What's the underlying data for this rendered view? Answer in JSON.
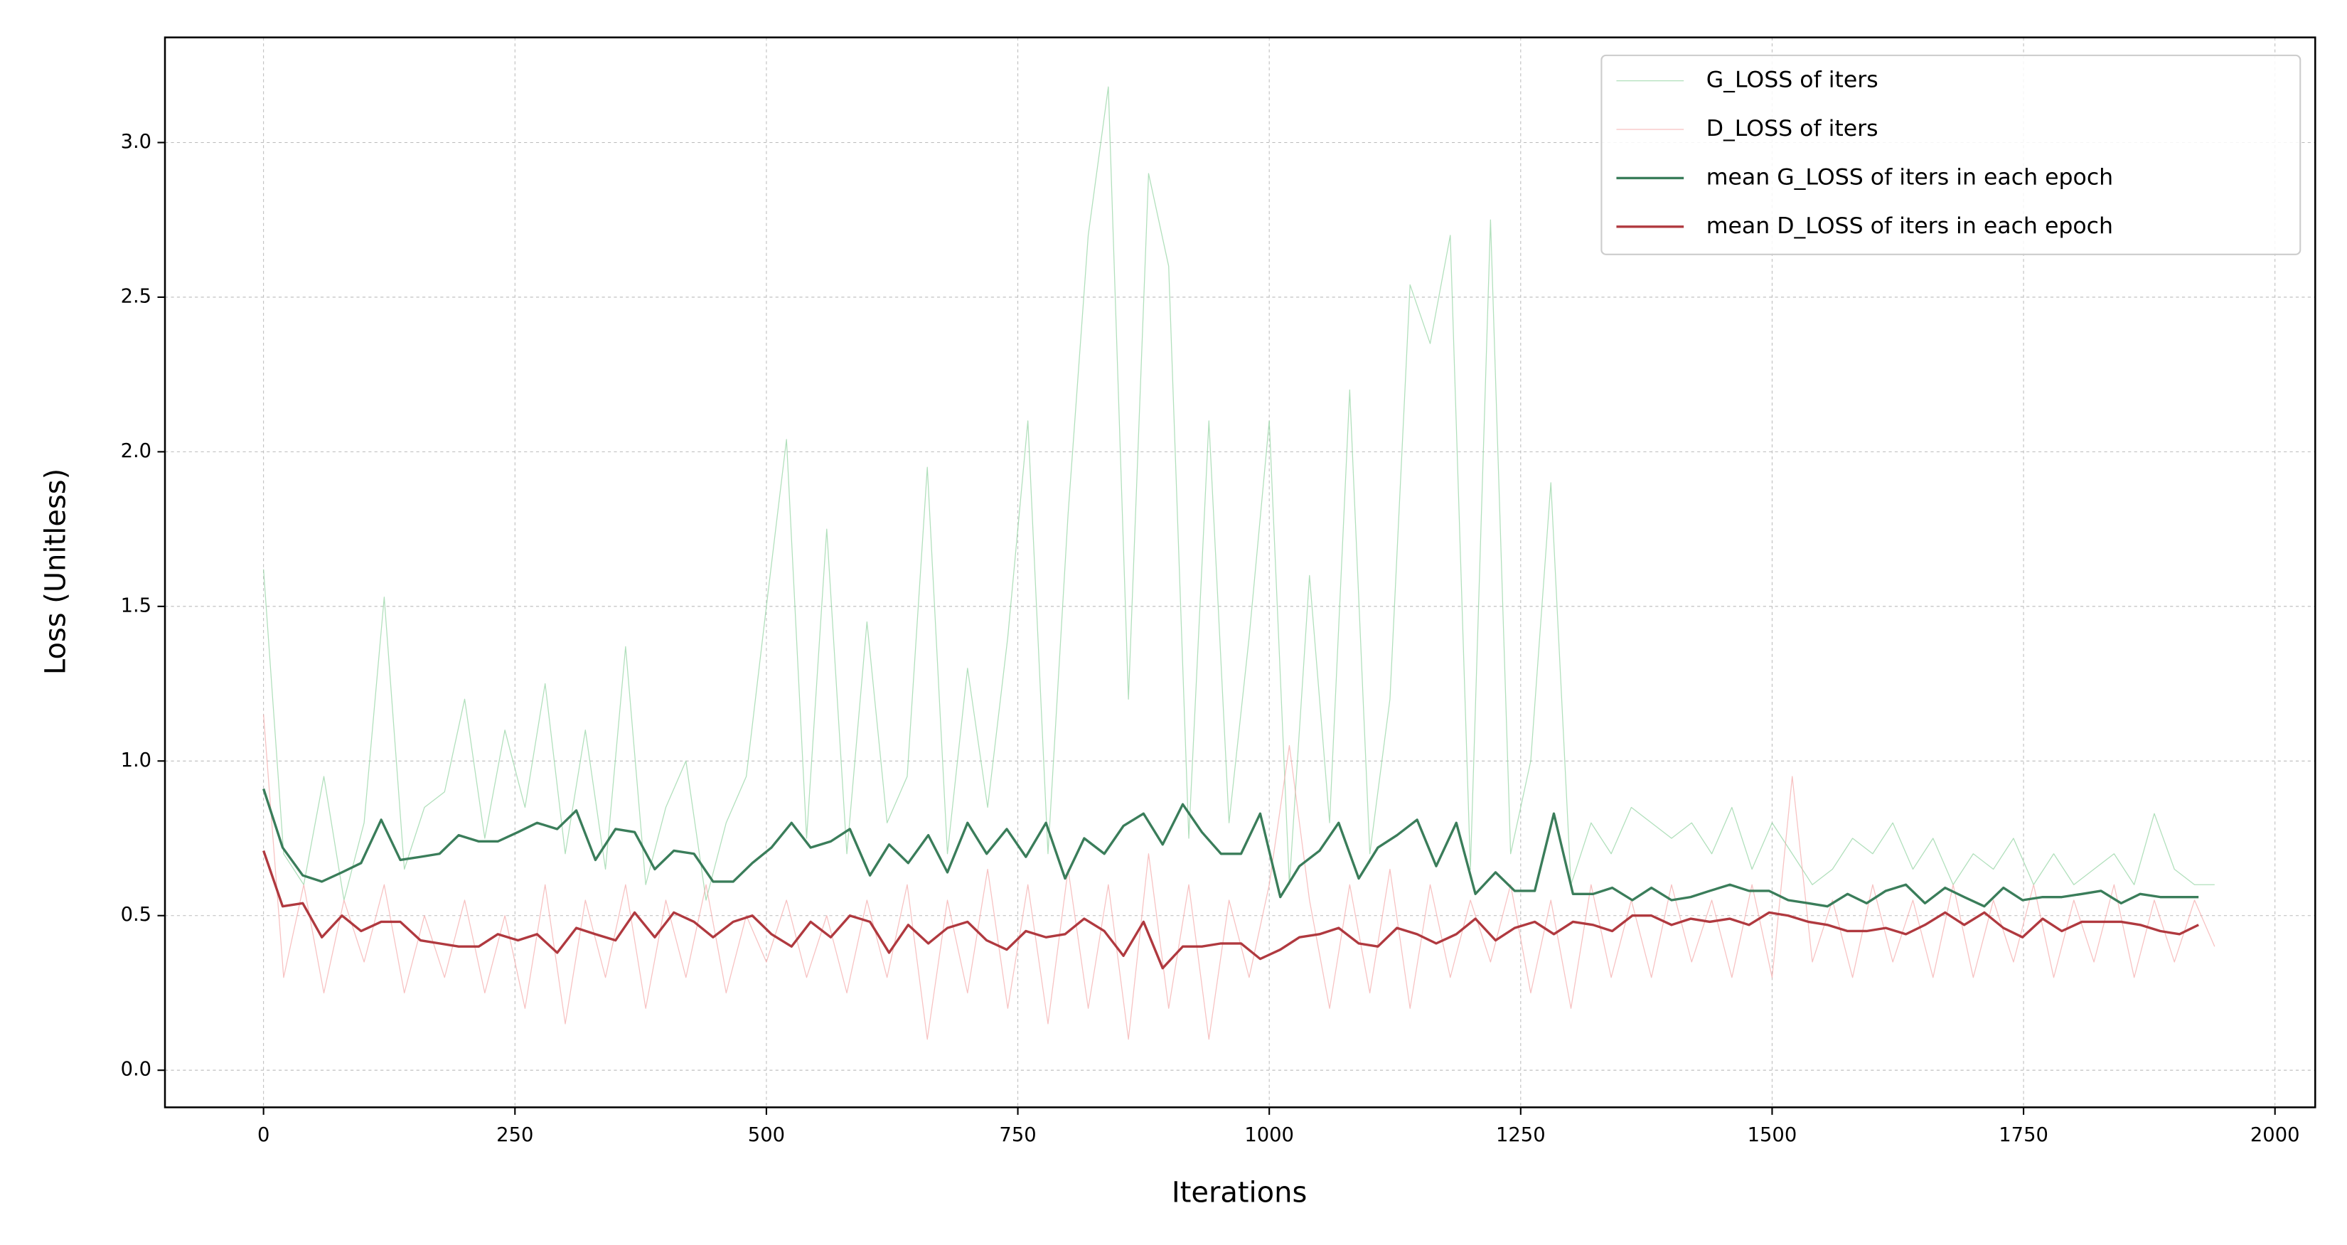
{
  "chart_data": {
    "type": "line",
    "xlabel": "Iterations",
    "ylabel": "Loss (Unitless)",
    "xlim": [
      -98,
      2040
    ],
    "ylim": [
      -0.12,
      3.34
    ],
    "xticks": [
      0,
      250,
      500,
      750,
      1000,
      1250,
      1500,
      1750,
      2000
    ],
    "yticks": [
      {
        "value": 0,
        "label": "0.0"
      },
      {
        "value": 0.5,
        "label": "0.5"
      },
      {
        "value": 1,
        "label": "1.0"
      },
      {
        "value": 1.5,
        "label": "1.5"
      },
      {
        "value": 2,
        "label": "2.0"
      },
      {
        "value": 2.5,
        "label": "2.5"
      },
      {
        "value": 3,
        "label": "3.0"
      }
    ],
    "grid": true,
    "legend": "upper right",
    "series": [
      {
        "name": "G_LOSS of iters",
        "color": "#8fd19e",
        "width": 0.6,
        "opacity": 0.7,
        "x": [
          0,
          20,
          40,
          60,
          80,
          100,
          120,
          140,
          160,
          180,
          200,
          220,
          240,
          260,
          280,
          300,
          320,
          340,
          360,
          380,
          400,
          420,
          440,
          460,
          480,
          500,
          520,
          540,
          560,
          580,
          600,
          620,
          640,
          660,
          680,
          700,
          720,
          740,
          760,
          780,
          800,
          820,
          840,
          860,
          880,
          900,
          920,
          940,
          960,
          980,
          1000,
          1020,
          1040,
          1060,
          1080,
          1100,
          1120,
          1140,
          1160,
          1180,
          1200,
          1220,
          1240,
          1260,
          1280,
          1300,
          1320,
          1340,
          1360,
          1380,
          1400,
          1420,
          1440,
          1460,
          1480,
          1500,
          1520,
          1540,
          1560,
          1580,
          1600,
          1620,
          1640,
          1660,
          1680,
          1700,
          1720,
          1740,
          1760,
          1780,
          1800,
          1820,
          1840,
          1860,
          1880,
          1900,
          1920,
          1940
        ],
        "values": [
          1.62,
          0.7,
          0.6,
          0.95,
          0.55,
          0.8,
          1.53,
          0.65,
          0.85,
          0.9,
          1.2,
          0.75,
          1.1,
          0.85,
          1.25,
          0.7,
          1.1,
          0.65,
          1.37,
          0.6,
          0.85,
          1.0,
          0.55,
          0.8,
          0.95,
          1.5,
          2.04,
          0.75,
          1.75,
          0.7,
          1.45,
          0.8,
          0.95,
          1.95,
          0.7,
          1.3,
          0.85,
          1.4,
          2.1,
          0.7,
          1.8,
          2.7,
          3.18,
          1.2,
          2.9,
          2.6,
          0.75,
          2.1,
          0.8,
          1.4,
          2.1,
          0.6,
          1.6,
          0.8,
          2.2,
          0.7,
          1.2,
          2.54,
          2.35,
          2.7,
          0.65,
          2.75,
          0.7,
          1.0,
          1.9,
          0.6,
          0.8,
          0.7,
          0.85,
          0.8,
          0.75,
          0.8,
          0.7,
          0.85,
          0.65,
          0.8,
          0.7,
          0.6,
          0.65,
          0.75,
          0.7,
          0.8,
          0.65,
          0.75,
          0.6,
          0.7,
          0.65,
          0.75,
          0.6,
          0.7,
          0.6,
          0.65,
          0.7,
          0.6,
          0.83,
          0.65,
          0.6,
          0.6
        ]
      },
      {
        "name": "D_LOSS of iters",
        "color": "#f4a6a6",
        "width": 0.6,
        "opacity": 0.7,
        "x": [
          0,
          20,
          40,
          60,
          80,
          100,
          120,
          140,
          160,
          180,
          200,
          220,
          240,
          260,
          280,
          300,
          320,
          340,
          360,
          380,
          400,
          420,
          440,
          460,
          480,
          500,
          520,
          540,
          560,
          580,
          600,
          620,
          640,
          660,
          680,
          700,
          720,
          740,
          760,
          780,
          800,
          820,
          840,
          860,
          880,
          900,
          920,
          940,
          960,
          980,
          1000,
          1020,
          1040,
          1060,
          1080,
          1100,
          1120,
          1140,
          1160,
          1180,
          1200,
          1220,
          1240,
          1260,
          1280,
          1300,
          1320,
          1340,
          1360,
          1380,
          1400,
          1420,
          1440,
          1460,
          1480,
          1500,
          1520,
          1540,
          1560,
          1580,
          1600,
          1620,
          1640,
          1660,
          1680,
          1700,
          1720,
          1740,
          1760,
          1780,
          1800,
          1820,
          1840,
          1860,
          1880,
          1900,
          1920,
          1940
        ],
        "values": [
          1.15,
          0.3,
          0.6,
          0.25,
          0.55,
          0.35,
          0.6,
          0.25,
          0.5,
          0.3,
          0.55,
          0.25,
          0.5,
          0.2,
          0.6,
          0.15,
          0.55,
          0.3,
          0.6,
          0.2,
          0.55,
          0.3,
          0.6,
          0.25,
          0.5,
          0.35,
          0.55,
          0.3,
          0.5,
          0.25,
          0.55,
          0.3,
          0.6,
          0.1,
          0.55,
          0.25,
          0.65,
          0.2,
          0.6,
          0.15,
          0.65,
          0.2,
          0.6,
          0.1,
          0.7,
          0.2,
          0.6,
          0.1,
          0.55,
          0.3,
          0.6,
          1.05,
          0.55,
          0.2,
          0.6,
          0.25,
          0.65,
          0.2,
          0.6,
          0.3,
          0.55,
          0.35,
          0.6,
          0.25,
          0.55,
          0.2,
          0.6,
          0.3,
          0.55,
          0.3,
          0.6,
          0.35,
          0.55,
          0.3,
          0.6,
          0.3,
          0.95,
          0.35,
          0.55,
          0.3,
          0.6,
          0.35,
          0.55,
          0.3,
          0.6,
          0.3,
          0.55,
          0.35,
          0.6,
          0.3,
          0.55,
          0.35,
          0.6,
          0.3,
          0.55,
          0.35,
          0.55,
          0.4
        ]
      },
      {
        "name": "mean G_LOSS of iters in each epoch",
        "color": "#3a7d5a",
        "width": 1.6,
        "opacity": 1,
        "x": [
          0,
          19,
          39,
          58,
          78,
          97,
          117,
          136,
          156,
          175,
          194,
          214,
          233,
          253,
          272,
          292,
          311,
          330,
          350,
          369,
          389,
          408,
          428,
          447,
          467,
          486,
          505,
          525,
          544,
          564,
          583,
          603,
          622,
          641,
          661,
          680,
          700,
          719,
          739,
          758,
          778,
          797,
          816,
          836,
          855,
          875,
          894,
          914,
          933,
          952,
          972,
          991,
          1011,
          1030,
          1050,
          1069,
          1089,
          1108,
          1127,
          1147,
          1166,
          1186,
          1205,
          1225,
          1244,
          1264,
          1283,
          1302,
          1322,
          1341,
          1361,
          1380,
          1400,
          1419,
          1438,
          1458,
          1477,
          1497,
          1516,
          1536,
          1555,
          1575,
          1594,
          1613,
          1633,
          1652,
          1672,
          1691,
          1711,
          1730,
          1749,
          1769,
          1788,
          1808,
          1827,
          1847,
          1866,
          1886,
          1905,
          1924
        ],
        "values": [
          0.91,
          0.72,
          0.63,
          0.61,
          0.64,
          0.67,
          0.81,
          0.68,
          0.69,
          0.7,
          0.76,
          0.74,
          0.74,
          0.77,
          0.8,
          0.78,
          0.84,
          0.68,
          0.78,
          0.77,
          0.65,
          0.71,
          0.7,
          0.61,
          0.61,
          0.67,
          0.72,
          0.8,
          0.72,
          0.74,
          0.78,
          0.63,
          0.73,
          0.67,
          0.76,
          0.64,
          0.8,
          0.7,
          0.78,
          0.69,
          0.8,
          0.62,
          0.75,
          0.7,
          0.79,
          0.83,
          0.73,
          0.86,
          0.77,
          0.7,
          0.7,
          0.83,
          0.56,
          0.66,
          0.71,
          0.8,
          0.62,
          0.72,
          0.76,
          0.81,
          0.66,
          0.8,
          0.57,
          0.64,
          0.58,
          0.58,
          0.83,
          0.57,
          0.57,
          0.59,
          0.55,
          0.59,
          0.55,
          0.56,
          0.58,
          0.6,
          0.58,
          0.58,
          0.55,
          0.54,
          0.53,
          0.57,
          0.54,
          0.58,
          0.6,
          0.54,
          0.59,
          0.56,
          0.53,
          0.59,
          0.55,
          0.56,
          0.56,
          0.57,
          0.58,
          0.54,
          0.57,
          0.56,
          0.56,
          0.56
        ]
      },
      {
        "name": "mean D_LOSS of iters in each epoch",
        "color": "#b0393f",
        "width": 1.6,
        "opacity": 1,
        "x": [
          0,
          19,
          39,
          58,
          78,
          97,
          117,
          136,
          156,
          175,
          194,
          214,
          233,
          253,
          272,
          292,
          311,
          330,
          350,
          369,
          389,
          408,
          428,
          447,
          467,
          486,
          505,
          525,
          544,
          564,
          583,
          603,
          622,
          641,
          661,
          680,
          700,
          719,
          739,
          758,
          778,
          797,
          816,
          836,
          855,
          875,
          894,
          914,
          933,
          952,
          972,
          991,
          1011,
          1030,
          1050,
          1069,
          1089,
          1108,
          1127,
          1147,
          1166,
          1186,
          1205,
          1225,
          1244,
          1264,
          1283,
          1302,
          1322,
          1341,
          1361,
          1380,
          1400,
          1419,
          1438,
          1458,
          1477,
          1497,
          1516,
          1536,
          1555,
          1575,
          1594,
          1613,
          1633,
          1652,
          1672,
          1691,
          1711,
          1730,
          1749,
          1769,
          1788,
          1808,
          1827,
          1847,
          1866,
          1886,
          1905,
          1924
        ],
        "values": [
          0.71,
          0.53,
          0.54,
          0.43,
          0.5,
          0.45,
          0.48,
          0.48,
          0.42,
          0.41,
          0.4,
          0.4,
          0.44,
          0.42,
          0.44,
          0.38,
          0.46,
          0.44,
          0.42,
          0.51,
          0.43,
          0.51,
          0.48,
          0.43,
          0.48,
          0.5,
          0.44,
          0.4,
          0.48,
          0.43,
          0.5,
          0.48,
          0.38,
          0.47,
          0.41,
          0.46,
          0.48,
          0.42,
          0.39,
          0.45,
          0.43,
          0.44,
          0.49,
          0.45,
          0.37,
          0.48,
          0.33,
          0.4,
          0.4,
          0.41,
          0.41,
          0.36,
          0.39,
          0.43,
          0.44,
          0.46,
          0.41,
          0.4,
          0.46,
          0.44,
          0.41,
          0.44,
          0.49,
          0.42,
          0.46,
          0.48,
          0.44,
          0.48,
          0.47,
          0.45,
          0.5,
          0.5,
          0.47,
          0.49,
          0.48,
          0.49,
          0.47,
          0.51,
          0.5,
          0.48,
          0.47,
          0.45,
          0.45,
          0.46,
          0.44,
          0.47,
          0.51,
          0.47,
          0.51,
          0.46,
          0.43,
          0.49,
          0.45,
          0.48,
          0.48,
          0.48,
          0.47,
          0.45,
          0.44,
          0.47
        ]
      }
    ]
  }
}
